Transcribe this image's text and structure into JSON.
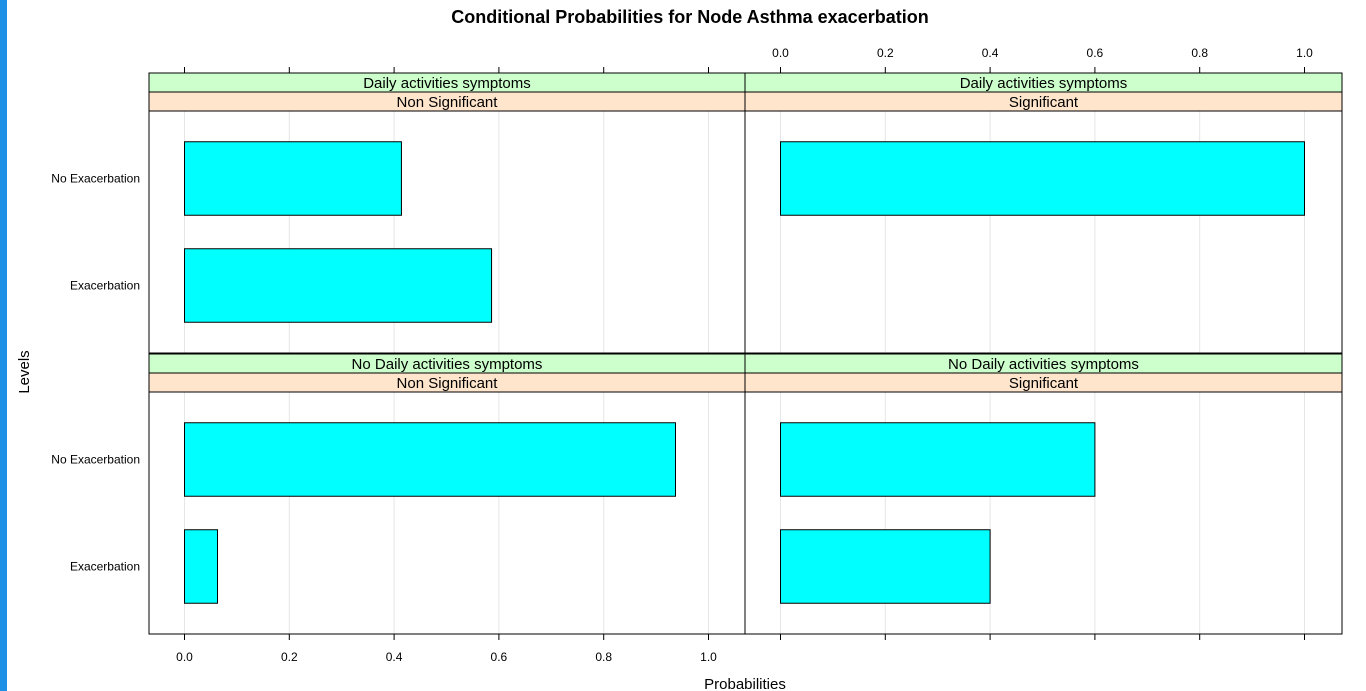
{
  "chart_data": {
    "type": "bar",
    "orientation": "horizontal",
    "title": "Conditional Probabilities for Node Asthma exacerbation",
    "xlabel": "Probabilities",
    "ylabel": "Levels",
    "xlim": [
      0,
      1
    ],
    "x_ticks": [
      "0.0",
      "0.2",
      "0.4",
      "0.6",
      "0.8",
      "1.0"
    ],
    "categories": [
      "No Exacerbation",
      "Exacerbation"
    ],
    "bar_color": "#00ffff",
    "strip_colors": {
      "outer": "#ccffcc",
      "inner": "#ffe5cc"
    },
    "panels": [
      {
        "strip_outer": "Daily activities symptoms",
        "strip_inner": "Non Significant",
        "values": [
          0.414,
          0.586
        ]
      },
      {
        "strip_outer": "Daily activities symptoms",
        "strip_inner": "Significant",
        "values": [
          1.0,
          0.0
        ]
      },
      {
        "strip_outer": "No Daily activities symptoms",
        "strip_inner": "Non Significant",
        "values": [
          0.937,
          0.063
        ]
      },
      {
        "strip_outer": "No Daily activities symptoms",
        "strip_inner": "Significant",
        "values": [
          0.6,
          0.4
        ]
      }
    ]
  }
}
